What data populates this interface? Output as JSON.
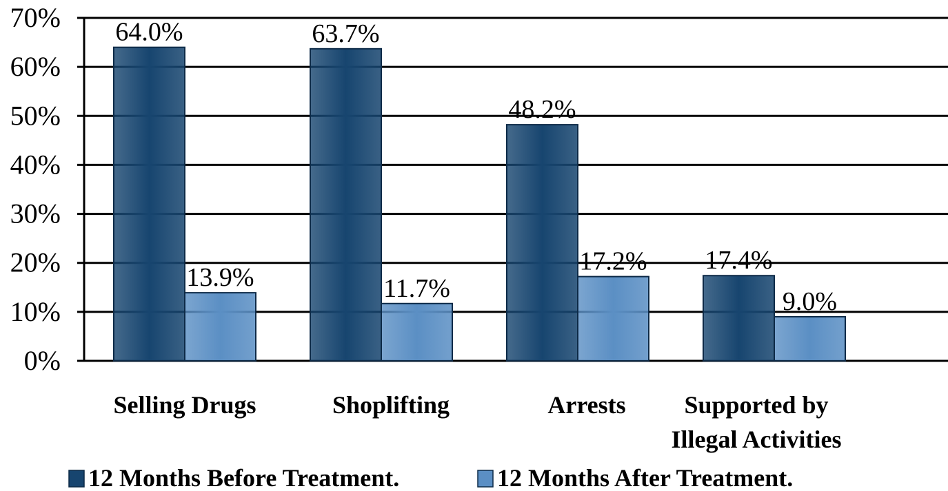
{
  "chart_data": {
    "type": "bar",
    "categories": [
      [
        "Selling Drugs"
      ],
      [
        "Shoplifting"
      ],
      [
        "Arrests"
      ],
      [
        "Supported by",
        "Illegal Activities"
      ]
    ],
    "series": [
      {
        "name": "12 Months Before Treatment.",
        "values": [
          64.0,
          63.7,
          48.2,
          17.4
        ],
        "labels": [
          "64.0%",
          "63.7%",
          "48.2%",
          "17.4%"
        ],
        "color": "#17456f"
      },
      {
        "name": "12 Months After Treatment.",
        "values": [
          13.9,
          11.7,
          17.2,
          9.0
        ],
        "labels": [
          "13.9%",
          "11.7%",
          "17.2%",
          "9.0%"
        ],
        "color": "#5b8fc4"
      }
    ],
    "yticks": [
      "0%",
      "10%",
      "20%",
      "30%",
      "40%",
      "50%",
      "60%",
      "70%"
    ],
    "ylim": [
      0,
      70
    ],
    "grid": true,
    "legend": "bottom",
    "title": "",
    "xlabel": "",
    "ylabel": ""
  }
}
